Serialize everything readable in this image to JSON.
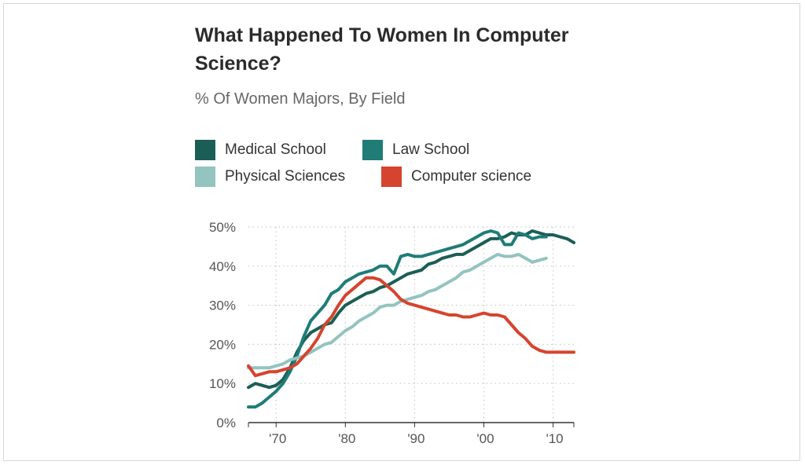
{
  "title": "What Happened To Women In Computer Science?",
  "subtitle": "% Of Women Majors, By Field",
  "legend": [
    {
      "label": "Medical School",
      "color": "#1b5e55"
    },
    {
      "label": "Law School",
      "color": "#1f7c77"
    },
    {
      "label": "Physical Sciences",
      "color": "#93c4bf"
    },
    {
      "label": "Computer science",
      "color": "#d5442e"
    }
  ],
  "chart_data": {
    "type": "line",
    "title": "What Happened To Women In Computer Science?",
    "subtitle": "% Of Women Majors, By Field",
    "xlabel": "",
    "ylabel": "",
    "xlim": [
      1966,
      2013
    ],
    "ylim": [
      0,
      50
    ],
    "y_ticks": [
      {
        "value": 0,
        "label": "0%"
      },
      {
        "value": 10,
        "label": "10%"
      },
      {
        "value": 20,
        "label": "20%"
      },
      {
        "value": 30,
        "label": "30%"
      },
      {
        "value": 40,
        "label": "40%"
      },
      {
        "value": 50,
        "label": "50%"
      }
    ],
    "x_ticks": [
      {
        "value": 1970,
        "label": "'70"
      },
      {
        "value": 1980,
        "label": "'80"
      },
      {
        "value": 1990,
        "label": "'90"
      },
      {
        "value": 2000,
        "label": "'00"
      },
      {
        "value": 2010,
        "label": "'10"
      }
    ],
    "grid": true,
    "legend_position": "top",
    "series": [
      {
        "name": "Medical School",
        "color": "#1b5e55",
        "points": [
          [
            1966,
            9
          ],
          [
            1967,
            10
          ],
          [
            1968,
            9.5
          ],
          [
            1969,
            9
          ],
          [
            1970,
            9.5
          ],
          [
            1971,
            11
          ],
          [
            1972,
            14
          ],
          [
            1973,
            18
          ],
          [
            1974,
            21
          ],
          [
            1975,
            23
          ],
          [
            1976,
            24
          ],
          [
            1977,
            25
          ],
          [
            1978,
            25.5
          ],
          [
            1979,
            28
          ],
          [
            1980,
            30
          ],
          [
            1981,
            31
          ],
          [
            1982,
            32
          ],
          [
            1983,
            33
          ],
          [
            1984,
            33.5
          ],
          [
            1985,
            34.5
          ],
          [
            1986,
            35
          ],
          [
            1987,
            36
          ],
          [
            1988,
            37
          ],
          [
            1989,
            38
          ],
          [
            1990,
            38.5
          ],
          [
            1991,
            39
          ],
          [
            1992,
            40.5
          ],
          [
            1993,
            41
          ],
          [
            1994,
            42
          ],
          [
            1995,
            42.5
          ],
          [
            1996,
            43
          ],
          [
            1997,
            43
          ],
          [
            1998,
            44
          ],
          [
            1999,
            45
          ],
          [
            2000,
            46
          ],
          [
            2001,
            47
          ],
          [
            2002,
            47
          ],
          [
            2003,
            47.5
          ],
          [
            2004,
            48.5
          ],
          [
            2005,
            48
          ],
          [
            2006,
            48
          ],
          [
            2007,
            49
          ],
          [
            2008,
            48.5
          ],
          [
            2009,
            48
          ],
          [
            2010,
            48
          ],
          [
            2011,
            47.5
          ],
          [
            2012,
            47
          ],
          [
            2013,
            46
          ]
        ]
      },
      {
        "name": "Law School",
        "color": "#1f7c77",
        "points": [
          [
            1966,
            4
          ],
          [
            1967,
            4
          ],
          [
            1968,
            5
          ],
          [
            1969,
            6.5
          ],
          [
            1970,
            8
          ],
          [
            1971,
            10
          ],
          [
            1972,
            13
          ],
          [
            1973,
            17
          ],
          [
            1974,
            22
          ],
          [
            1975,
            26
          ],
          [
            1976,
            28
          ],
          [
            1977,
            30
          ],
          [
            1978,
            33
          ],
          [
            1979,
            34
          ],
          [
            1980,
            36
          ],
          [
            1981,
            37
          ],
          [
            1982,
            38
          ],
          [
            1983,
            38.5
          ],
          [
            1984,
            39
          ],
          [
            1985,
            40
          ],
          [
            1986,
            40
          ],
          [
            1987,
            38
          ],
          [
            1988,
            42.5
          ],
          [
            1989,
            43
          ],
          [
            1990,
            42.5
          ],
          [
            1991,
            42.5
          ],
          [
            1992,
            43
          ],
          [
            1993,
            43.5
          ],
          [
            1994,
            44
          ],
          [
            1995,
            44.5
          ],
          [
            1996,
            45
          ],
          [
            1997,
            45.5
          ],
          [
            1998,
            46.5
          ],
          [
            1999,
            47.5
          ],
          [
            2000,
            48.5
          ],
          [
            2001,
            49
          ],
          [
            2002,
            48.5
          ],
          [
            2003,
            45.5
          ],
          [
            2004,
            45.5
          ],
          [
            2005,
            48.5
          ],
          [
            2006,
            48
          ],
          [
            2007,
            47
          ],
          [
            2008,
            47.5
          ],
          [
            2009,
            47.5
          ]
        ]
      },
      {
        "name": "Physical Sciences",
        "color": "#93c4bf",
        "points": [
          [
            1966,
            14
          ],
          [
            1967,
            14
          ],
          [
            1968,
            14
          ],
          [
            1969,
            14
          ],
          [
            1970,
            14.5
          ],
          [
            1971,
            15
          ],
          [
            1972,
            16
          ],
          [
            1973,
            16.5
          ],
          [
            1974,
            17
          ],
          [
            1975,
            18
          ],
          [
            1976,
            19
          ],
          [
            1977,
            20
          ],
          [
            1978,
            20.5
          ],
          [
            1979,
            22
          ],
          [
            1980,
            23.5
          ],
          [
            1981,
            24.5
          ],
          [
            1982,
            26
          ],
          [
            1983,
            27
          ],
          [
            1984,
            28
          ],
          [
            1985,
            29.5
          ],
          [
            1986,
            30
          ],
          [
            1987,
            30
          ],
          [
            1988,
            31
          ],
          [
            1989,
            31.5
          ],
          [
            1990,
            32
          ],
          [
            1991,
            32.5
          ],
          [
            1992,
            33.5
          ],
          [
            1993,
            34
          ],
          [
            1994,
            35
          ],
          [
            1995,
            36
          ],
          [
            1996,
            37
          ],
          [
            1997,
            38.5
          ],
          [
            1998,
            39
          ],
          [
            1999,
            40
          ],
          [
            2000,
            41
          ],
          [
            2001,
            42
          ],
          [
            2002,
            43
          ],
          [
            2003,
            42.5
          ],
          [
            2004,
            42.5
          ],
          [
            2005,
            43
          ],
          [
            2006,
            42
          ],
          [
            2007,
            41
          ],
          [
            2008,
            41.5
          ],
          [
            2009,
            42
          ]
        ]
      },
      {
        "name": "Computer science",
        "color": "#d5442e",
        "points": [
          [
            1966,
            14.5
          ],
          [
            1967,
            12
          ],
          [
            1968,
            12.5
          ],
          [
            1969,
            13
          ],
          [
            1970,
            13
          ],
          [
            1971,
            13.5
          ],
          [
            1972,
            14
          ],
          [
            1973,
            15
          ],
          [
            1974,
            17
          ],
          [
            1975,
            19
          ],
          [
            1976,
            21.5
          ],
          [
            1977,
            25
          ],
          [
            1978,
            27
          ],
          [
            1979,
            30
          ],
          [
            1980,
            32.5
          ],
          [
            1981,
            34
          ],
          [
            1982,
            35.5
          ],
          [
            1983,
            37
          ],
          [
            1984,
            37
          ],
          [
            1985,
            36.5
          ],
          [
            1986,
            35
          ],
          [
            1987,
            33.5
          ],
          [
            1988,
            31.5
          ],
          [
            1989,
            30.5
          ],
          [
            1990,
            30
          ],
          [
            1991,
            29.5
          ],
          [
            1992,
            29
          ],
          [
            1993,
            28.5
          ],
          [
            1994,
            28
          ],
          [
            1995,
            27.5
          ],
          [
            1996,
            27.5
          ],
          [
            1997,
            27
          ],
          [
            1998,
            27
          ],
          [
            1999,
            27.5
          ],
          [
            2000,
            28
          ],
          [
            2001,
            27.5
          ],
          [
            2002,
            27.5
          ],
          [
            2003,
            27
          ],
          [
            2004,
            25
          ],
          [
            2005,
            23
          ],
          [
            2006,
            21.5
          ],
          [
            2007,
            19.5
          ],
          [
            2008,
            18.5
          ],
          [
            2009,
            18
          ],
          [
            2010,
            18
          ],
          [
            2011,
            18
          ],
          [
            2012,
            18
          ],
          [
            2013,
            18
          ]
        ]
      }
    ]
  }
}
